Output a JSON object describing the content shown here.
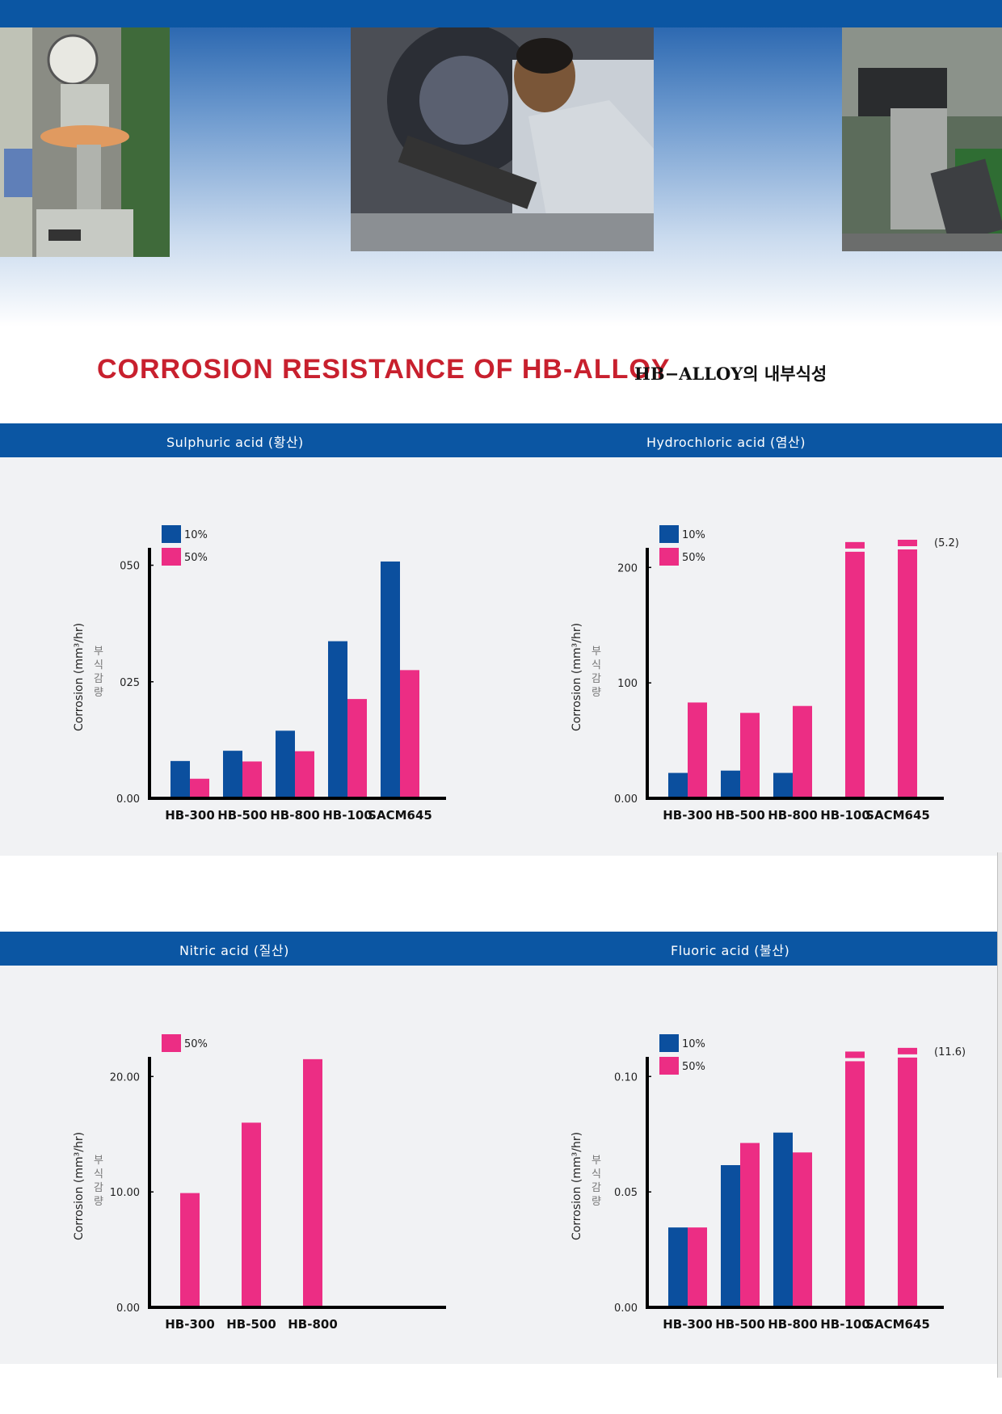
{
  "header": {
    "title": "CORROSION RESISTANCE OF HB-ALLOY",
    "title_ko": "HB−ALLOY의 내부식성",
    "photos": [
      "hardness-tester-photo",
      "technician-inspection-photo",
      "microscope-photo"
    ]
  },
  "colors": {
    "brand_blue": "#0b56a3",
    "series_10": "#0b4f9e",
    "series_50": "#ec2d84",
    "title_red": "#c8202e"
  },
  "sections": [
    {
      "title": "Sulphuric acid (황산)"
    },
    {
      "title": "Hydrochloric acid (염산)"
    },
    {
      "title": "Nitric acid (질산)"
    },
    {
      "title": "Fluoric acid (불산)"
    }
  ],
  "chart_data": [
    {
      "type": "bar",
      "title": "Sulphuric acid (황산)",
      "ylabel": "Corrosion (mm³/hr)",
      "ylabel_ko": "부식감량",
      "categories": [
        "HB-300",
        "HB-500",
        "HB-800",
        "HB-100",
        "SACM645"
      ],
      "ylim": [
        0,
        0.052
      ],
      "yticks": [
        0,
        0.025,
        0.05
      ],
      "ytick_labels": [
        "0.00",
        "025",
        "050"
      ],
      "series": [
        {
          "name": "10%",
          "values": [
            0.008,
            0.0102,
            0.0145,
            0.0337,
            0.0508
          ]
        },
        {
          "name": "50%",
          "values": [
            0.0042,
            0.0079,
            0.0101,
            0.0213,
            0.0275
          ]
        }
      ],
      "legend": "top-left"
    },
    {
      "type": "bar",
      "title": "Hydrochloric acid (염산)",
      "ylabel": "Corrosion (mm³/hr)",
      "ylabel_ko": "부식감량",
      "categories": [
        "HB-300",
        "HB-500",
        "HB-800",
        "HB-100",
        "SACM645"
      ],
      "ylim": [
        0,
        210
      ],
      "yticks": [
        0,
        100,
        200
      ],
      "ytick_labels": [
        "0.00",
        "100",
        "200"
      ],
      "series": [
        {
          "name": "10%",
          "values": [
            22,
            24,
            22,
            null,
            null
          ]
        },
        {
          "name": "50%",
          "values": [
            83,
            74,
            80,
            222,
            224
          ]
        }
      ],
      "axis_breaks": [
        3,
        4
      ],
      "annotation": "(5.2)",
      "legend": "top-left"
    },
    {
      "type": "bar",
      "title": "Nitric acid (질산)",
      "ylabel": "Corrosion (mm³/hr)",
      "ylabel_ko": "부식감량",
      "categories": [
        "HB-300",
        "HB-500",
        "HB-800"
      ],
      "ylim": [
        0,
        21
      ],
      "yticks": [
        0,
        10,
        20
      ],
      "ytick_labels": [
        "0.00",
        "10.00",
        "20.00"
      ],
      "series": [
        {
          "name": "50%",
          "values": [
            9.9,
            16.0,
            21.5
          ]
        }
      ],
      "legend": "top-left"
    },
    {
      "type": "bar",
      "title": "Fluoric acid (불산)",
      "ylabel": "Corrosion (mm³/hr)",
      "ylabel_ko": "부식감량",
      "categories": [
        "HB-300",
        "HB-500",
        "HB-800",
        "HB-100",
        "SACM645"
      ],
      "ylim": [
        0,
        0.105
      ],
      "yticks": [
        0,
        0.05,
        0.1
      ],
      "ytick_labels": [
        "0.00",
        "0.05",
        "0.10"
      ],
      "series": [
        {
          "name": "10%",
          "values": [
            0.0346,
            0.0616,
            0.0757,
            null,
            null
          ]
        },
        {
          "name": "50%",
          "values": [
            0.0346,
            0.0712,
            0.0671,
            0.1108,
            0.1124
          ]
        }
      ],
      "axis_breaks": [
        3,
        4
      ],
      "annotation": "(11.6)",
      "legend": "top-left"
    }
  ]
}
